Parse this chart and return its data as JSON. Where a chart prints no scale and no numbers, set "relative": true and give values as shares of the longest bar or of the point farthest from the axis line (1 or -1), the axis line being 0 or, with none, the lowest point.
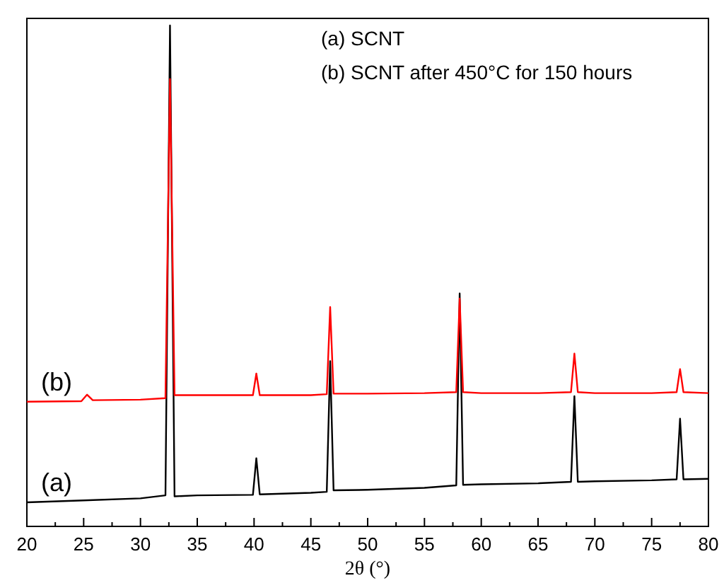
{
  "chart_data": {
    "type": "line",
    "relative": true,
    "xlabel": "2θ (°)",
    "xlim": [
      20,
      80
    ],
    "xticks": [
      20,
      {
        "value": 22.5,
        "label": null
      },
      25,
      {
        "value": 27.5,
        "label": null
      },
      30,
      {
        "value": 32.5,
        "label": null
      },
      35,
      {
        "value": 37.5,
        "label": null
      },
      40,
      {
        "value": 42.5,
        "label": null
      },
      45,
      {
        "value": 47.5,
        "label": null
      },
      50,
      {
        "value": 52.5,
        "label": null
      },
      55,
      {
        "value": 57.5,
        "label": null
      },
      60,
      {
        "value": 62.5,
        "label": null
      },
      65,
      {
        "value": 67.5,
        "label": null
      },
      70,
      {
        "value": 72.5,
        "label": null
      },
      75,
      {
        "value": 77.5,
        "label": null
      },
      80
    ],
    "grid": false,
    "marker": "none",
    "line_style": "solid",
    "annotations": [
      "(a) SCNT",
      "(b) SCNT after 450°C for 150 hours"
    ],
    "series": [
      {
        "name": "(a)",
        "color": "#000000",
        "x": [
          20,
          25,
          30,
          32.2,
          32.6,
          33.0,
          35,
          39.9,
          40.2,
          40.5,
          45,
          46.4,
          46.7,
          47.0,
          50,
          55,
          57.8,
          58.1,
          58.4,
          60,
          65,
          67.9,
          68.2,
          68.5,
          70,
          75,
          77.2,
          77.5,
          77.8,
          80
        ],
        "values": [
          0.048,
          0.052,
          0.056,
          0.062,
          1.0,
          0.06,
          0.062,
          0.063,
          0.136,
          0.064,
          0.067,
          0.069,
          0.33,
          0.072,
          0.073,
          0.077,
          0.082,
          0.465,
          0.083,
          0.084,
          0.086,
          0.089,
          0.26,
          0.089,
          0.09,
          0.092,
          0.094,
          0.215,
          0.094,
          0.095
        ]
      },
      {
        "name": "(b)",
        "color": "#ff0000",
        "x": [
          20,
          24.8,
          25.3,
          25.8,
          30,
          32.2,
          32.6,
          33.0,
          35,
          39.9,
          40.2,
          40.5,
          45,
          46.4,
          46.7,
          47.0,
          50,
          55,
          57.8,
          58.1,
          58.4,
          60,
          65,
          67.9,
          68.2,
          68.5,
          70,
          75,
          77.2,
          77.5,
          77.8,
          80
        ],
        "values": [
          0.249,
          0.25,
          0.263,
          0.252,
          0.253,
          0.256,
          0.893,
          0.262,
          0.262,
          0.262,
          0.305,
          0.262,
          0.262,
          0.264,
          0.438,
          0.265,
          0.265,
          0.266,
          0.268,
          0.455,
          0.268,
          0.266,
          0.266,
          0.268,
          0.345,
          0.268,
          0.266,
          0.266,
          0.268,
          0.314,
          0.268,
          0.266
        ]
      }
    ]
  }
}
